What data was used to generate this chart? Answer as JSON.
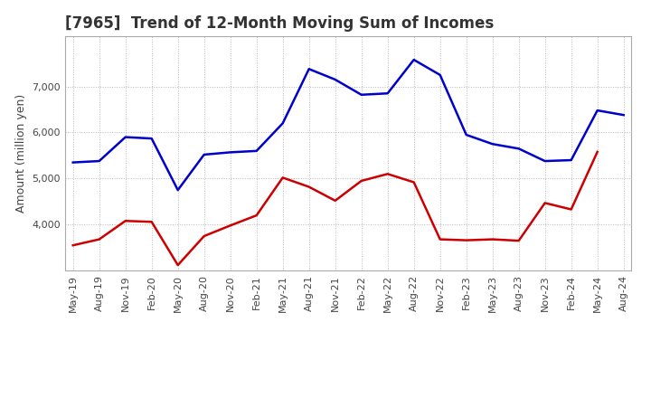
{
  "title": "[7965]  Trend of 12-Month Moving Sum of Incomes",
  "ylabel": "Amount (million yen)",
  "x_labels": [
    "May-19",
    "Aug-19",
    "Nov-19",
    "Feb-20",
    "May-20",
    "Aug-20",
    "Nov-20",
    "Feb-21",
    "May-21",
    "Aug-21",
    "Nov-21",
    "Feb-22",
    "May-22",
    "Aug-22",
    "Nov-22",
    "Feb-23",
    "May-23",
    "Aug-23",
    "Nov-23",
    "Feb-24",
    "May-24",
    "Aug-24"
  ],
  "ordinary_income": [
    5350,
    5380,
    5900,
    5870,
    4750,
    5520,
    5570,
    5600,
    6200,
    7380,
    7150,
    6820,
    6850,
    7580,
    7250,
    5950,
    5750,
    5650,
    5380,
    5400,
    6480,
    6380
  ],
  "net_income": [
    3550,
    3680,
    4080,
    4060,
    3120,
    3750,
    3980,
    4200,
    5020,
    4820,
    4520,
    4950,
    5100,
    4920,
    3680,
    3660,
    3680,
    3650,
    4470,
    4330,
    5580,
    null
  ],
  "ordinary_color": "#0000cc",
  "net_color": "#cc0000",
  "ylim_min": 3000,
  "ylim_max": 8100,
  "yticks": [
    4000,
    5000,
    6000,
    7000
  ],
  "background_color": "#ffffff",
  "grid_color": "#b0b0b0",
  "title_fontsize": 12,
  "ylabel_fontsize": 9,
  "tick_fontsize": 8,
  "line_width": 1.8
}
